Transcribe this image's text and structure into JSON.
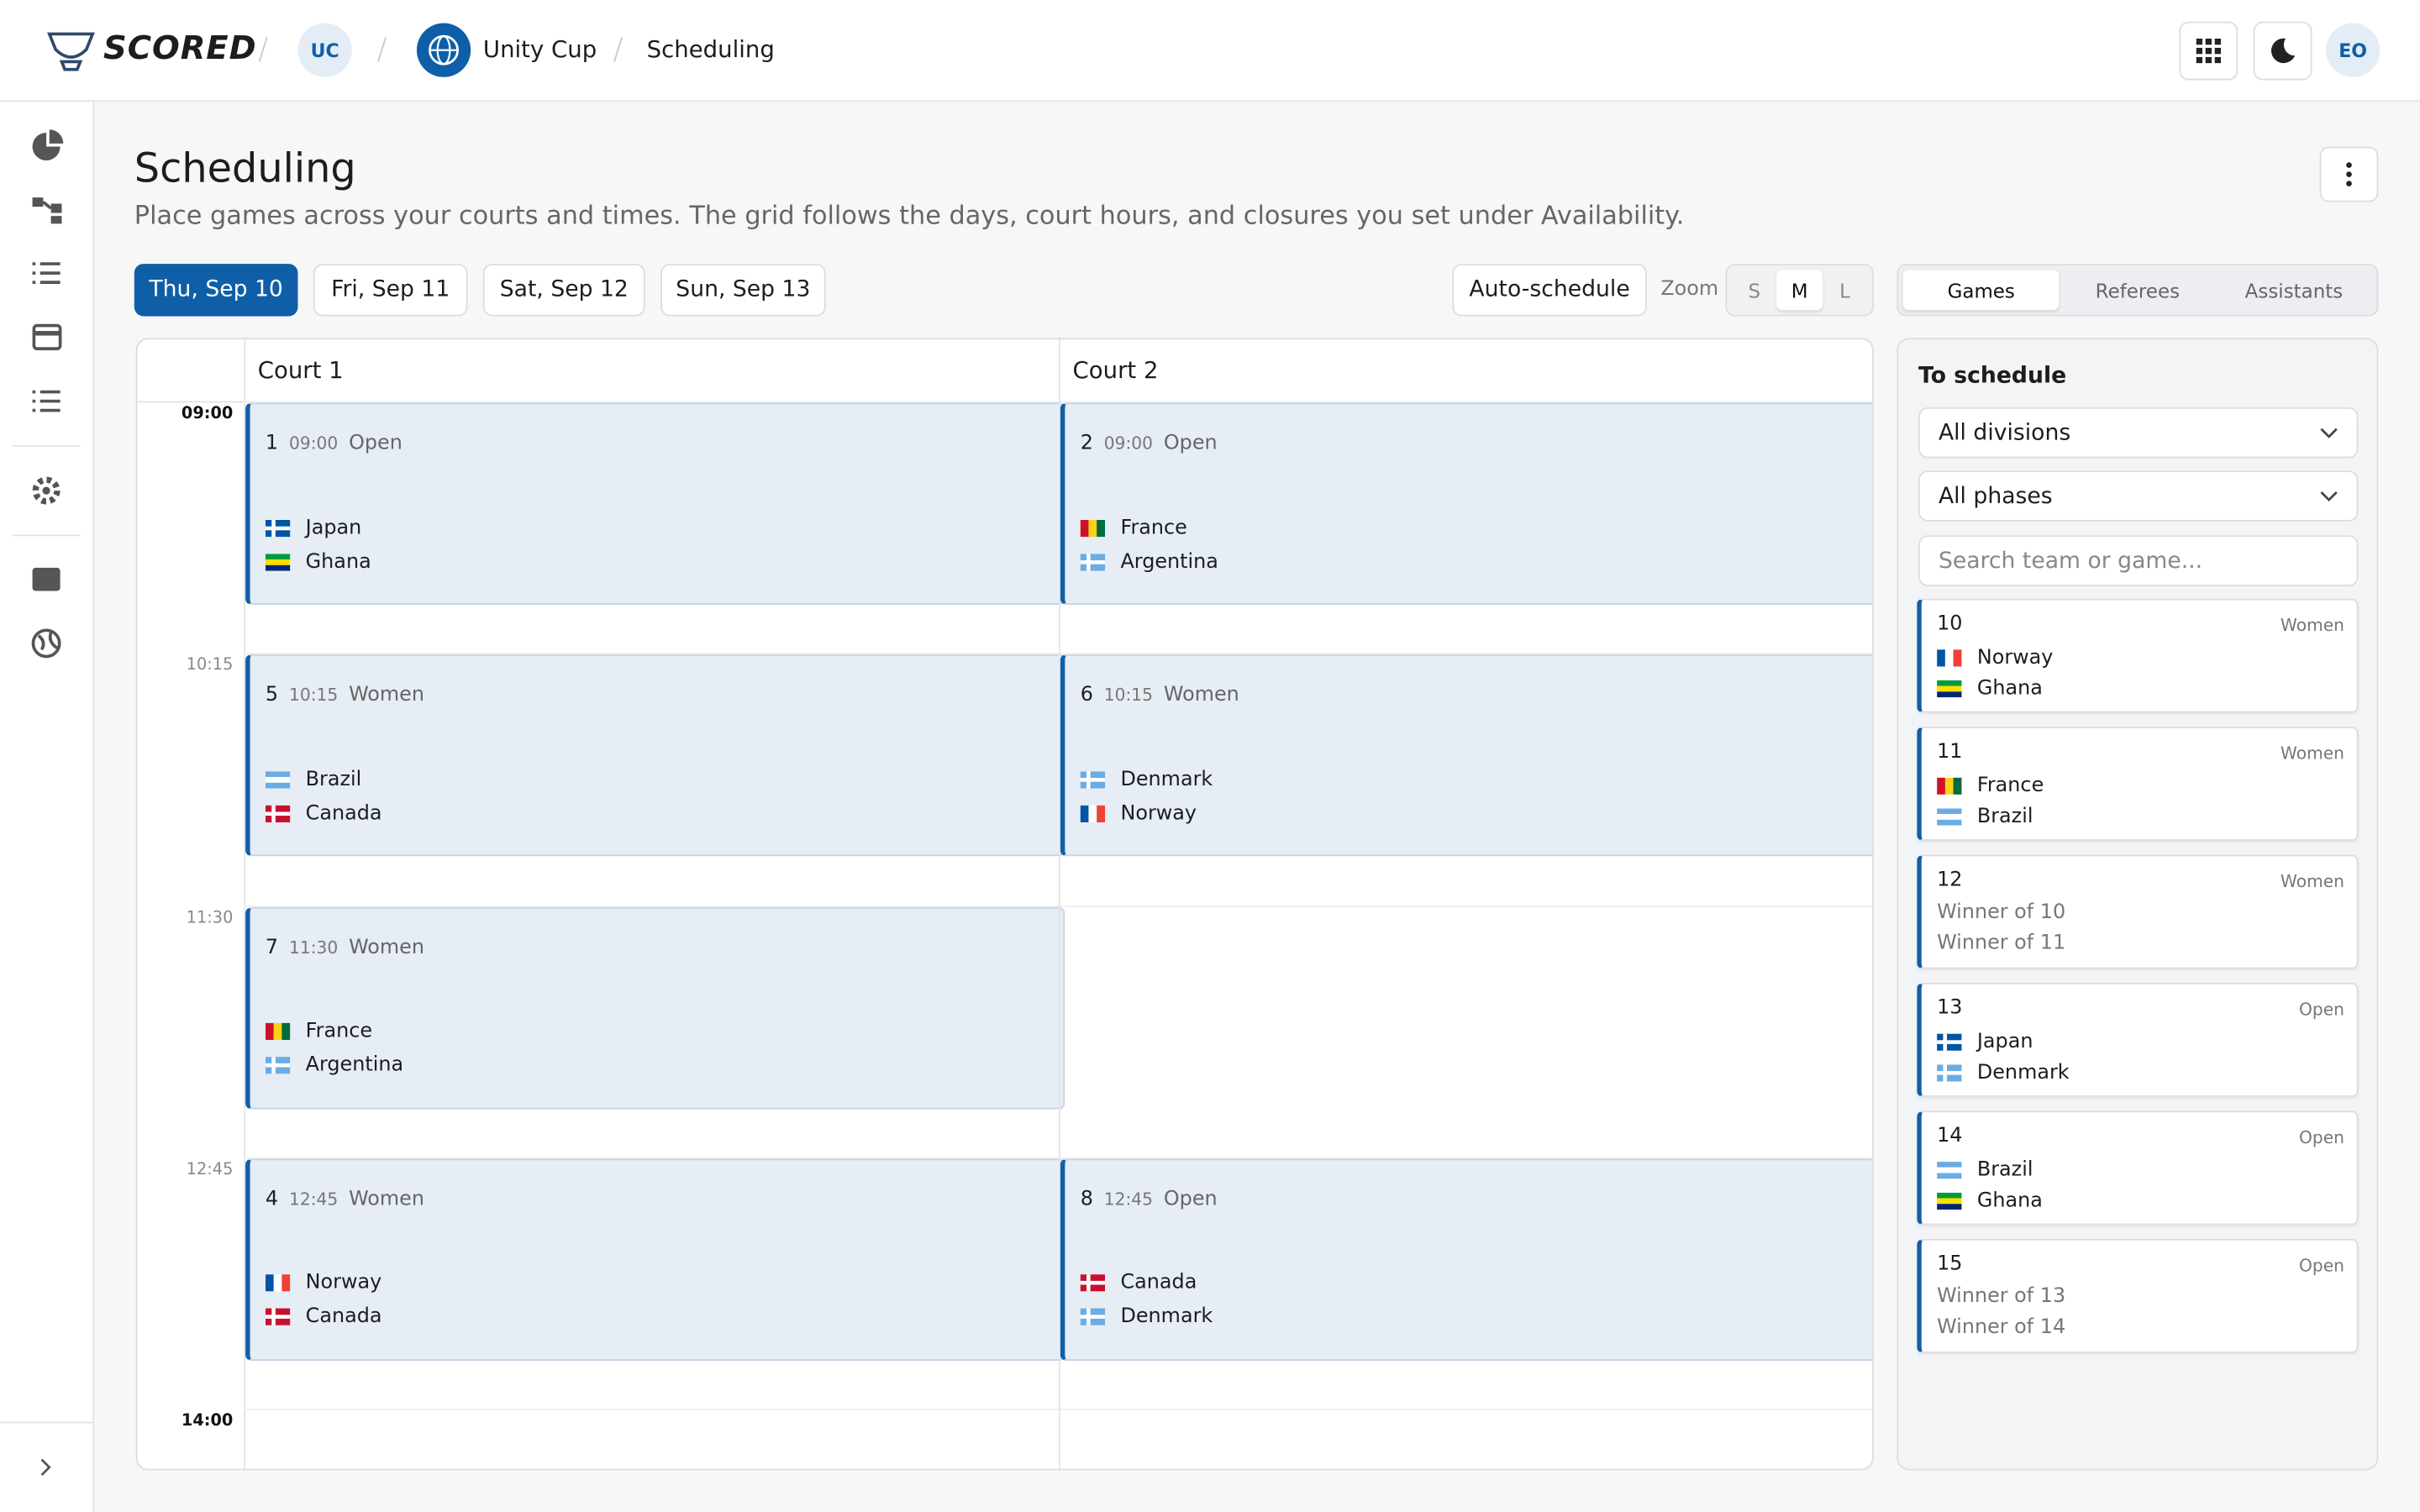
{
  "header": {
    "brand": "SCORED",
    "org_badge": "UC",
    "tournament": "Unity Cup",
    "page": "Scheduling",
    "user": "EO"
  },
  "page": {
    "title": "Scheduling",
    "description": "Place games across your courts and times. The grid follows the days, court hours, and closures you set under Availability.",
    "days": [
      "Thu, Sep 10",
      "Fri, Sep 11",
      "Sat, Sep 12",
      "Sun, Sep 13"
    ],
    "auto_schedule": "Auto-schedule",
    "zoom_label": "Zoom",
    "zoom_options": [
      "S",
      "M",
      "L"
    ],
    "tabs": [
      "Games",
      "Referees",
      "Assistants"
    ]
  },
  "grid": {
    "times": [
      "09:00",
      "10:15",
      "11:30",
      "12:45",
      "14:00"
    ],
    "courts": [
      {
        "name": "Court 1",
        "games": [
          {
            "number": "1",
            "time": "09:00",
            "division": "Open",
            "teams": [
              "Japan",
              "Ghana"
            ]
          },
          {
            "number": "5",
            "time": "10:15",
            "division": "Women",
            "teams": [
              "Brazil",
              "Canada"
            ]
          },
          {
            "number": "7",
            "time": "11:30",
            "division": "Women",
            "teams": [
              "France",
              "Argentina"
            ]
          },
          {
            "number": "4",
            "time": "12:45",
            "division": "Women",
            "teams": [
              "Norway",
              "Canada"
            ]
          }
        ]
      },
      {
        "name": "Court 2",
        "games": [
          {
            "number": "2",
            "time": "09:00",
            "division": "Open",
            "teams": [
              "France",
              "Argentina"
            ]
          },
          {
            "number": "6",
            "time": "10:15",
            "division": "Women",
            "teams": [
              "Denmark",
              "Norway"
            ]
          },
          {
            "number": "8",
            "time": "12:45",
            "division": "Open",
            "teams": [
              "Canada",
              "Denmark"
            ]
          }
        ]
      }
    ]
  },
  "to_schedule": {
    "heading": "To schedule",
    "filters": [
      "All divisions",
      "All phases"
    ],
    "search_placeholder": "Search team or game...",
    "games": [
      {
        "number": "10",
        "division": "Women",
        "teams": [
          "Norway",
          "Ghana"
        ]
      },
      {
        "number": "11",
        "division": "Women",
        "teams": [
          "France",
          "Brazil"
        ]
      },
      {
        "number": "12",
        "division": "Women",
        "placeholders": [
          "Winner of 10",
          "Winner of 11"
        ]
      },
      {
        "number": "13",
        "division": "Open",
        "teams": [
          "Japan",
          "Denmark"
        ]
      },
      {
        "number": "14",
        "division": "Open",
        "teams": [
          "Brazil",
          "Ghana"
        ]
      },
      {
        "number": "15",
        "division": "Open",
        "placeholders": [
          "Winner of 13",
          "Winner of 14"
        ]
      }
    ]
  }
}
